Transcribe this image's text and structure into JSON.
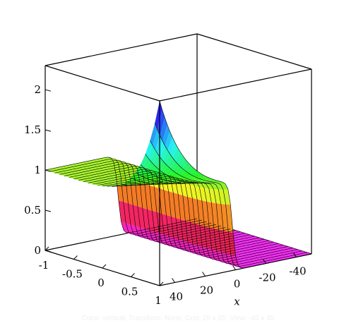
{
  "chart_data": {
    "type": "surface3d",
    "title": "",
    "xlabel": "x",
    "ylabel": "",
    "zlabel": "",
    "t_axis": {
      "range": [
        -1,
        1
      ],
      "ticks": [
        "-1",
        "-0.5",
        "0",
        "0.5",
        "1"
      ]
    },
    "x_axis": {
      "range": [
        50,
        -50
      ],
      "ticks": [
        "40",
        "20",
        "0",
        "-20",
        "-40"
      ]
    },
    "z_axis": {
      "range": [
        0,
        2.3
      ],
      "ticks": [
        "0",
        "0.5",
        "1",
        "1.5",
        "2"
      ]
    },
    "surface": {
      "description_free": true,
      "t_values": [
        -1,
        -0.9,
        -0.8,
        -0.7,
        -0.6,
        -0.5,
        -0.4,
        -0.3,
        -0.2,
        -0.1,
        0,
        0.1,
        0.2,
        0.3,
        0.4,
        0.5,
        0.6,
        0.7,
        0.8,
        0.9,
        1
      ],
      "x_values": [
        50,
        40,
        30,
        20,
        10,
        5,
        0,
        -5,
        -10,
        -20,
        -30,
        -40,
        -50
      ],
      "z_left_plateau": 1.0,
      "z_front_edge_peak": 2.3,
      "z_right_floor": 0.0
    },
    "colormap": "hue",
    "box": true
  },
  "caption": "Color: vertical; Transform: None; Grid: 25 x 25; View: -45 x 45"
}
